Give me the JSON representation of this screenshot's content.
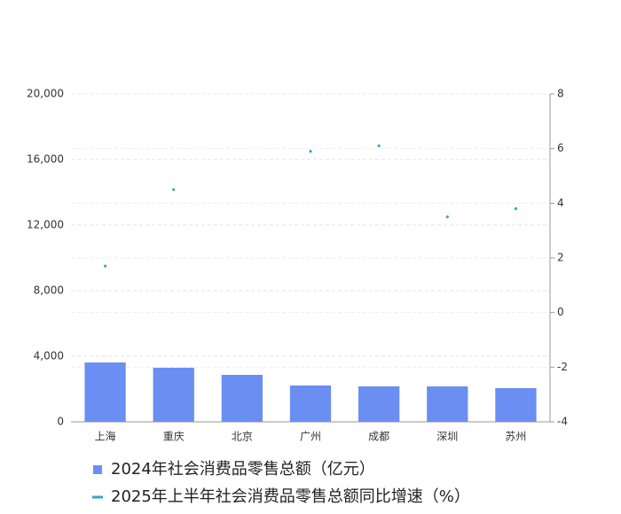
{
  "chart_data": {
    "type": "bar_line",
    "categories": [
      "上海",
      "重庆",
      "北京",
      "广州",
      "成都",
      "深圳",
      "苏州"
    ],
    "series": [
      {
        "name": "2024年社会消费品零售总额（亿元）",
        "type": "bar",
        "color": "#6b8ef2",
        "values": [
          3620,
          3300,
          2865,
          2216,
          2162,
          2160,
          2054
        ]
      },
      {
        "name": "2025年上半年社会消费品零售总额同比增速（%）",
        "type": "line",
        "axis": "y2",
        "color": "#3ba4c9",
        "values": [
          1.7,
          4.5,
          -3.8,
          5.9,
          6.1,
          3.5,
          3.8
        ]
      }
    ],
    "ylim": [
      0,
      20000
    ],
    "yticks": [
      0,
      {
        "value": 4000,
        "label": "4,000"
      },
      {
        "value": 8000,
        "label": "8,000"
      },
      {
        "value": 12000,
        "label": "12,000"
      },
      {
        "value": 16000,
        "label": "16,000"
      },
      {
        "value": 20000,
        "label": "20,000"
      }
    ],
    "y2lim": [
      -4,
      8
    ],
    "y2ticks": [
      -4,
      -2,
      0,
      2,
      4,
      6,
      8
    ],
    "grid": true,
    "legend": "bottom"
  }
}
